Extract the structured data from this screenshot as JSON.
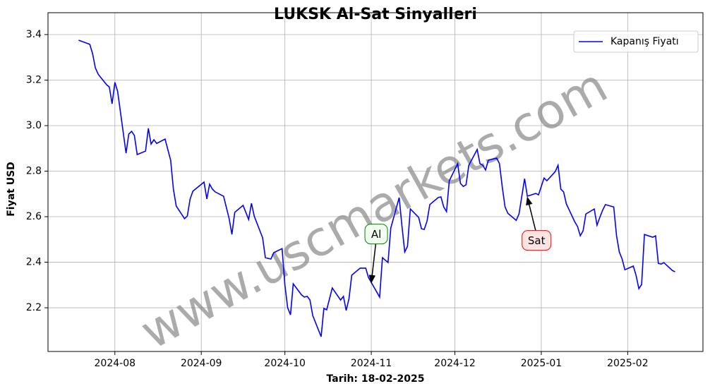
{
  "chart_data": {
    "type": "line",
    "title": "LUKSK Al-Sat Sinyalleri",
    "xlabel": "Tarih: 18-02-2025",
    "ylabel": "Fiyat USD",
    "watermark": "www.uscmarkets.com",
    "legend": "upper right",
    "grid": true,
    "xlim": [
      "2024-07-08",
      "2025-02-28"
    ],
    "ylim": [
      2.008,
      3.496
    ],
    "xticks": [
      "2024-08",
      "2024-09",
      "2024-10",
      "2024-11",
      "2024-12",
      "2025-01",
      "2025-02"
    ],
    "yticks": [
      2.2,
      2.4,
      2.6,
      2.8,
      {
        "value": 3,
        "label": "3.0"
      },
      3.2,
      3.4
    ],
    "x": [
      "2024-07-19",
      "2024-07-23",
      "2024-07-24",
      "2024-07-25",
      "2024-07-26",
      "2024-07-29",
      "2024-07-30",
      "2024-07-31",
      "2024-08-01",
      "2024-08-02",
      "2024-08-05",
      "2024-08-06",
      "2024-08-07",
      "2024-08-08",
      "2024-08-09",
      "2024-08-12",
      "2024-08-13",
      "2024-08-14",
      "2024-08-15",
      "2024-08-16",
      "2024-08-19",
      "2024-08-21",
      "2024-08-22",
      "2024-08-23",
      "2024-08-26",
      "2024-08-27",
      "2024-08-28",
      "2024-08-29",
      "2024-09-02",
      "2024-09-03",
      "2024-09-04",
      "2024-09-05",
      "2024-09-06",
      "2024-09-09",
      "2024-09-11",
      "2024-09-12",
      "2024-09-13",
      "2024-09-16",
      "2024-09-18",
      "2024-09-19",
      "2024-09-20",
      "2024-09-23",
      "2024-09-24",
      "2024-09-26",
      "2024-09-27",
      "2024-09-30",
      "2024-10-01",
      "2024-10-02",
      "2024-10-03",
      "2024-10-04",
      "2024-10-07",
      "2024-10-08",
      "2024-10-09",
      "2024-10-10",
      "2024-10-11",
      "2024-10-14",
      "2024-10-15",
      "2024-10-16",
      "2024-10-18",
      "2024-10-21",
      "2024-10-22",
      "2024-10-23",
      "2024-10-24",
      "2024-10-25",
      "2024-10-28",
      "2024-10-30",
      "2024-10-31",
      "2024-11-04",
      "2024-11-05",
      "2024-11-07",
      "2024-11-08",
      "2024-11-11",
      "2024-11-12",
      "2024-11-13",
      "2024-11-14",
      "2024-11-15",
      "2024-11-18",
      "2024-11-19",
      "2024-11-20",
      "2024-11-21",
      "2024-11-22",
      "2024-11-25",
      "2024-11-26",
      "2024-11-27",
      "2024-11-28",
      "2024-11-29",
      "2024-12-02",
      "2024-12-03",
      "2024-12-04",
      "2024-12-05",
      "2024-12-06",
      "2024-12-09",
      "2024-12-10",
      "2024-12-11",
      "2024-12-12",
      "2024-12-13",
      "2024-12-16",
      "2024-12-17",
      "2024-12-18",
      "2024-12-19",
      "2024-12-20",
      "2024-12-23",
      "2024-12-24",
      "2024-12-26",
      "2024-12-27",
      "2024-12-30",
      "2024-12-31",
      "2025-01-02",
      "2025-01-03",
      "2025-01-06",
      "2025-01-07",
      "2025-01-08",
      "2025-01-09",
      "2025-01-10",
      "2025-01-13",
      "2025-01-14",
      "2025-01-15",
      "2025-01-16",
      "2025-01-17",
      "2025-01-20",
      "2025-01-21",
      "2025-01-22",
      "2025-01-23",
      "2025-01-24",
      "2025-01-27",
      "2025-01-28",
      "2025-01-29",
      "2025-01-30",
      "2025-01-31",
      "2025-02-03",
      "2025-02-04",
      "2025-02-05",
      "2025-02-06",
      "2025-02-07",
      "2025-02-10",
      "2025-02-11",
      "2025-02-12",
      "2025-02-13",
      "2025-02-14",
      "2025-02-17",
      "2025-02-18"
    ],
    "series": [
      {
        "name": "Kapanış Fiyatı",
        "color": "#0000ff",
        "values": [
          3.375,
          3.357,
          3.316,
          3.254,
          3.226,
          3.18,
          3.17,
          3.096,
          3.19,
          3.15,
          2.879,
          2.963,
          2.975,
          2.957,
          2.873,
          2.888,
          2.988,
          2.919,
          2.938,
          2.922,
          2.941,
          2.848,
          2.721,
          2.647,
          2.591,
          2.603,
          2.678,
          2.712,
          2.752,
          2.678,
          2.743,
          2.721,
          2.709,
          2.69,
          2.591,
          2.522,
          2.619,
          2.65,
          2.588,
          2.659,
          2.603,
          2.507,
          2.42,
          2.414,
          2.442,
          2.46,
          2.299,
          2.2,
          2.169,
          2.305,
          2.256,
          2.247,
          2.25,
          2.234,
          2.166,
          2.073,
          2.197,
          2.191,
          2.287,
          2.234,
          2.25,
          2.188,
          2.24,
          2.343,
          2.374,
          2.374,
          2.333,
          2.247,
          2.42,
          2.399,
          2.55,
          2.684,
          2.56,
          2.445,
          2.47,
          2.634,
          2.597,
          2.547,
          2.544,
          2.581,
          2.653,
          2.684,
          2.687,
          2.643,
          2.622,
          2.758,
          2.833,
          2.746,
          2.733,
          2.74,
          2.826,
          2.895,
          2.833,
          2.826,
          2.805,
          2.848,
          2.857,
          2.833,
          2.73,
          2.643,
          2.615,
          2.584,
          2.612,
          2.767,
          2.69,
          2.702,
          2.696,
          2.77,
          2.758,
          2.798,
          2.826,
          2.721,
          2.709,
          2.656,
          2.578,
          2.557,
          2.516,
          2.538,
          2.612,
          2.634,
          2.563,
          2.597,
          2.628,
          2.653,
          2.643,
          2.516,
          2.445,
          2.414,
          2.367,
          2.383,
          2.343,
          2.284,
          2.302,
          2.522,
          2.51,
          2.516,
          2.395,
          2.392,
          2.398,
          2.364,
          2.358
        ]
      }
    ],
    "annotations": [
      {
        "text": "Al",
        "x": "2024-11-01",
        "y": 2.31,
        "color": "#008000",
        "fill": "#f0fff0"
      },
      {
        "text": "Sat",
        "x": "2024-12-27",
        "y": 2.685,
        "color": "#ff0000",
        "fill": "#ffe4e1"
      }
    ]
  }
}
